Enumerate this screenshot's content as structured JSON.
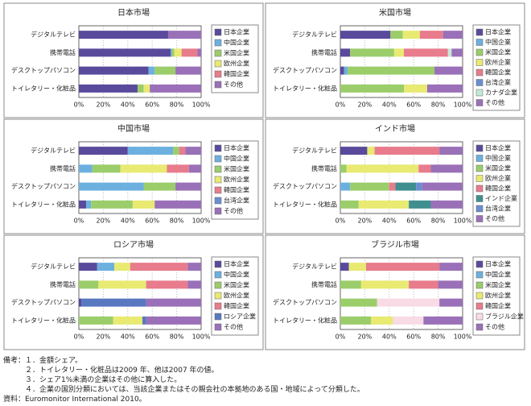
{
  "chart_data": [
    {
      "type": "bar",
      "title": "日本市場",
      "categories": [
        "デジタルテレビ",
        "携帯電話",
        "デスクトップパソコン",
        "トイレタリー・化粧品"
      ],
      "series": [
        {
          "name": "日本企業",
          "color": "#5a4a9c",
          "values": [
            73,
            75,
            57,
            48
          ]
        },
        {
          "name": "中国企業",
          "color": "#6cb0e0",
          "values": [
            0,
            1,
            5,
            0
          ]
        },
        {
          "name": "米国企業",
          "color": "#9bcd6b",
          "values": [
            0,
            2,
            17,
            5
          ]
        },
        {
          "name": "欧州企業",
          "color": "#e8ea72",
          "values": [
            0,
            6,
            0,
            5
          ]
        },
        {
          "name": "韓国企業",
          "color": "#e87c8c",
          "values": [
            0,
            13,
            0,
            0
          ]
        },
        {
          "name": "その他",
          "color": "#9a70b8",
          "values": [
            27,
            3,
            21,
            42
          ]
        }
      ],
      "xlim": [
        0,
        100
      ],
      "xticks": [
        {
          "value": 0,
          "label": "0%"
        },
        {
          "value": 20,
          "label": "20%"
        },
        {
          "value": 40,
          "label": "40%"
        },
        {
          "value": 60,
          "label": "60%"
        },
        {
          "value": 80,
          "label": "80%"
        },
        {
          "value": 100,
          "label": "100%"
        }
      ]
    },
    {
      "type": "bar",
      "title": "米国市場",
      "categories": [
        "デジタルテレビ",
        "携帯電話",
        "デスクトップパソコン",
        "トイレタリー・化粧品"
      ],
      "series": [
        {
          "name": "日本企業",
          "color": "#5a4a9c",
          "values": [
            41,
            8,
            3,
            0
          ]
        },
        {
          "name": "中国企業",
          "color": "#6cb0e0",
          "values": [
            0,
            0,
            3,
            0
          ]
        },
        {
          "name": "米国企業",
          "color": "#9bcd6b",
          "values": [
            10,
            36,
            71,
            52
          ]
        },
        {
          "name": "欧州企業",
          "color": "#e8ea72",
          "values": [
            14,
            8,
            0,
            19
          ]
        },
        {
          "name": "韓国企業",
          "color": "#e87c8c",
          "values": [
            19,
            36,
            0,
            0
          ]
        },
        {
          "name": "台湾企業",
          "color": "#6a8ed0",
          "values": [
            0,
            0,
            0,
            0
          ]
        },
        {
          "name": "カナダ企業",
          "color": "#c6e8d6",
          "values": [
            0,
            3,
            0,
            0
          ]
        },
        {
          "name": "その他",
          "color": "#9a70b8",
          "values": [
            16,
            9,
            23,
            29
          ]
        }
      ],
      "xlim": [
        0,
        100
      ],
      "xticks": [
        {
          "value": 0,
          "label": "0%"
        },
        {
          "value": 20,
          "label": "20%"
        },
        {
          "value": 40,
          "label": "40%"
        },
        {
          "value": 60,
          "label": "60%"
        },
        {
          "value": 80,
          "label": "80%"
        },
        {
          "value": 100,
          "label": "100%"
        }
      ]
    },
    {
      "type": "bar",
      "title": "中国市場",
      "categories": [
        "デジタルテレビ",
        "携帯電話",
        "デスクトップパソコン",
        "トイレタリー・化粧品"
      ],
      "series": [
        {
          "name": "日本企業",
          "color": "#5a4a9c",
          "values": [
            40,
            0,
            0,
            6
          ]
        },
        {
          "name": "中国企業",
          "color": "#6cb0e0",
          "values": [
            37,
            11,
            53,
            4
          ]
        },
        {
          "name": "米国企業",
          "color": "#9bcd6b",
          "values": [
            5,
            23,
            26,
            34
          ]
        },
        {
          "name": "欧州企業",
          "color": "#e8ea72",
          "values": [
            0,
            38,
            0,
            18
          ]
        },
        {
          "name": "韓国企業",
          "color": "#e87c8c",
          "values": [
            5,
            18,
            0,
            0
          ]
        },
        {
          "name": "台湾企業",
          "color": "#6a8ed0",
          "values": [
            0,
            0,
            0,
            0
          ]
        },
        {
          "name": "その他",
          "color": "#9a70b8",
          "values": [
            13,
            10,
            21,
            38
          ]
        }
      ],
      "xlim": [
        0,
        100
      ],
      "xticks": [
        {
          "value": 0,
          "label": "0%"
        },
        {
          "value": 20,
          "label": "20%"
        },
        {
          "value": 40,
          "label": "40%"
        },
        {
          "value": 60,
          "label": "60%"
        },
        {
          "value": 80,
          "label": "80%"
        },
        {
          "value": 100,
          "label": "100%"
        }
      ]
    },
    {
      "type": "bar",
      "title": "インド市場",
      "categories": [
        "デジタルテレビ",
        "携帯電話",
        "デスクトップパソコン",
        "トイレタリー・化粧品"
      ],
      "series": [
        {
          "name": "日本企業",
          "color": "#5a4a9c",
          "values": [
            22,
            0,
            0,
            0
          ]
        },
        {
          "name": "中国企業",
          "color": "#6cb0e0",
          "values": [
            0,
            0,
            8,
            0
          ]
        },
        {
          "name": "米国企業",
          "color": "#9bcd6b",
          "values": [
            0,
            5,
            32,
            15
          ]
        },
        {
          "name": "欧州企業",
          "color": "#e8ea72",
          "values": [
            6,
            59,
            0,
            41
          ]
        },
        {
          "name": "韓国企業",
          "color": "#e87c8c",
          "values": [
            53,
            10,
            5,
            0
          ]
        },
        {
          "name": "インド企業",
          "color": "#3f8f8f",
          "values": [
            0,
            0,
            17,
            18
          ]
        },
        {
          "name": "台湾企業",
          "color": "#6a8ed0",
          "values": [
            0,
            0,
            5,
            0
          ]
        },
        {
          "name": "その他",
          "color": "#9a70b8",
          "values": [
            19,
            26,
            33,
            26
          ]
        }
      ],
      "xlim": [
        0,
        100
      ],
      "xticks": [
        {
          "value": 0,
          "label": "0%"
        },
        {
          "value": 20,
          "label": "20%"
        },
        {
          "value": 40,
          "label": "40%"
        },
        {
          "value": 60,
          "label": "60%"
        },
        {
          "value": 80,
          "label": "80%"
        },
        {
          "value": 100,
          "label": "100%"
        }
      ]
    },
    {
      "type": "bar",
      "title": "ロシア市場",
      "categories": [
        "デジタルテレビ",
        "携帯電話",
        "デスクトップパソコン",
        "トイレタリー・化粧品"
      ],
      "series": [
        {
          "name": "日本企業",
          "color": "#5a4a9c",
          "values": [
            15,
            0,
            2,
            0
          ]
        },
        {
          "name": "中国企業",
          "color": "#6cb0e0",
          "values": [
            14,
            0,
            0,
            0
          ]
        },
        {
          "name": "米国企業",
          "color": "#9bcd6b",
          "values": [
            0,
            16,
            0,
            28
          ]
        },
        {
          "name": "欧州企業",
          "color": "#e8ea72",
          "values": [
            13,
            39,
            0,
            24
          ]
        },
        {
          "name": "韓国企業",
          "color": "#e87c8c",
          "values": [
            47,
            34,
            0,
            0
          ]
        },
        {
          "name": "ロシア企業",
          "color": "#5878c0",
          "values": [
            0,
            0,
            53,
            3
          ]
        },
        {
          "name": "その他",
          "color": "#9a70b8",
          "values": [
            11,
            11,
            45,
            45
          ]
        }
      ],
      "xlim": [
        0,
        100
      ],
      "xticks": [
        {
          "value": 0,
          "label": "0%"
        },
        {
          "value": 20,
          "label": "20%"
        },
        {
          "value": 40,
          "label": "40%"
        },
        {
          "value": 60,
          "label": "60%"
        },
        {
          "value": 80,
          "label": "80%"
        },
        {
          "value": 100,
          "label": "100%"
        }
      ]
    },
    {
      "type": "bar",
      "title": "ブラジル市場",
      "categories": [
        "デジタルテレビ",
        "携帯電話",
        "デスクトップパソコン",
        "トイレタリー・化粧品"
      ],
      "series": [
        {
          "name": "日本企業",
          "color": "#5a4a9c",
          "values": [
            7,
            0,
            0,
            0
          ]
        },
        {
          "name": "中国企業",
          "color": "#6cb0e0",
          "values": [
            0,
            0,
            0,
            0
          ]
        },
        {
          "name": "米国企業",
          "color": "#9bcd6b",
          "values": [
            0,
            17,
            30,
            25
          ]
        },
        {
          "name": "欧州企業",
          "color": "#e8ea72",
          "values": [
            14,
            39,
            0,
            18
          ]
        },
        {
          "name": "韓国企業",
          "color": "#e87c8c",
          "values": [
            60,
            24,
            0,
            0
          ]
        },
        {
          "name": "ブラジル企業",
          "color": "#f8dbe4",
          "values": [
            0,
            0,
            51,
            25
          ]
        },
        {
          "name": "その他",
          "color": "#9a70b8",
          "values": [
            19,
            20,
            19,
            32
          ]
        }
      ],
      "xlim": [
        0,
        100
      ],
      "xticks": [
        {
          "value": 0,
          "label": "0%"
        },
        {
          "value": 20,
          "label": "20%"
        },
        {
          "value": 40,
          "label": "40%"
        },
        {
          "value": 60,
          "label": "60%"
        },
        {
          "value": 80,
          "label": "80%"
        },
        {
          "value": 100,
          "label": "100%"
        }
      ]
    }
  ],
  "notes": [
    "備考：１．金額シェア。",
    "　　　２．トイレタリー・化粧品は2009 年、他は2007 年の値。",
    "　　　３．シェア1%未満の企業はその他に算入した。",
    "　　　４．企業の国別分類においては、当該企業またはその親会社の本拠地のある国・地域によって分類した。",
    "資料：Euromonitor International 2010。"
  ]
}
